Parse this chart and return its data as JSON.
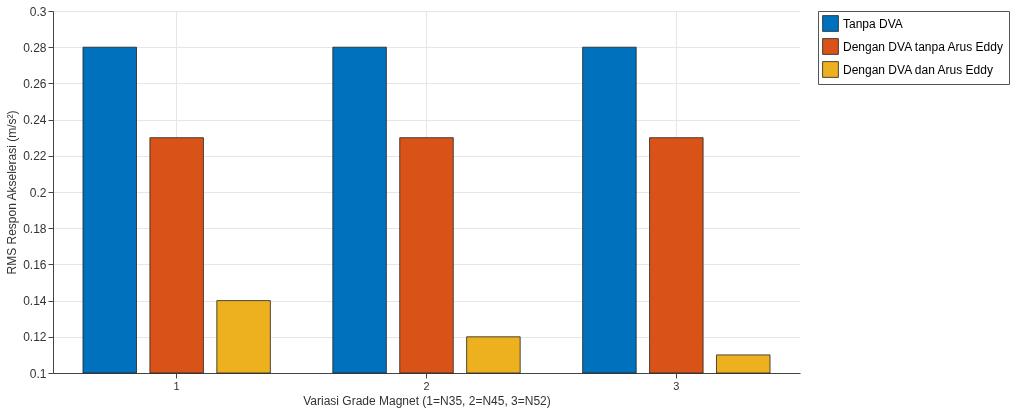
{
  "chart_data": {
    "type": "bar",
    "xlabel": "Variasi Grade Magnet (1=N35, 2=N45, 3=N52)",
    "ylabel": "RMS Respon Akselerasi (m/s²)",
    "categories": [
      "1",
      "2",
      "3"
    ],
    "series": [
      {
        "name": "Tanpa DVA",
        "color": "#0072bd",
        "values": [
          0.28,
          0.28,
          0.28
        ]
      },
      {
        "name": "Dengan DVA tanpa Arus Eddy",
        "color": "#d95319",
        "values": [
          0.23,
          0.23,
          0.23
        ]
      },
      {
        "name": "Dengan DVA dan Arus Eddy",
        "color": "#edb120",
        "values": [
          0.14,
          0.12,
          0.11
        ]
      }
    ],
    "ylim": [
      0.1,
      0.3
    ],
    "yticks": [
      0.1,
      0.12,
      0.14,
      0.16,
      0.18,
      0.2,
      0.22,
      0.24,
      0.26,
      0.28,
      0.3
    ],
    "grid": true,
    "legend": "top right"
  }
}
